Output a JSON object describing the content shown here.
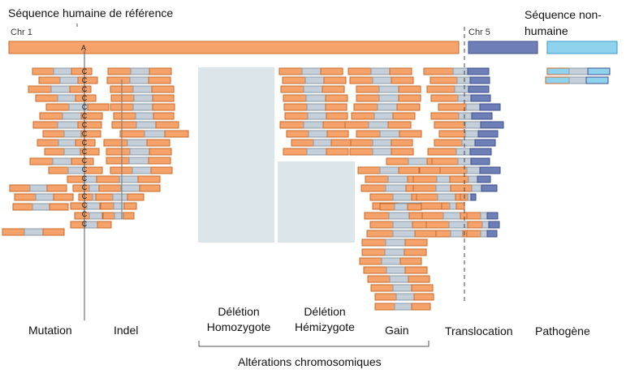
{
  "header": {
    "human_ref": "Séquence humaine de référence",
    "nonhuman": "Séquence non-humaine",
    "chr1": "Chr 1",
    "chr5": "Chr 5",
    "base_ref": "A",
    "base_mut": "C"
  },
  "labels": {
    "mutation": "Mutation",
    "indel": "Indel",
    "del_homo": "Délétion Homozygote",
    "del_hemi": "Délétion Hémizygote",
    "gain": "Gain",
    "translocation": "Translocation",
    "pathogen": "Pathogène",
    "chromosomal": "Altérations chromosomiques"
  },
  "colors": {
    "human_read": "#F6A36B",
    "human_stroke": "#C86A2A",
    "insert": "#C4CFD9",
    "chr5": "#6E7FB8",
    "chr5_stroke": "#3E4F8C",
    "pathogen": "#8ED2EE",
    "pathogen_stroke": "#3A9AC8",
    "deletion_box": "#DCE5EA"
  }
}
